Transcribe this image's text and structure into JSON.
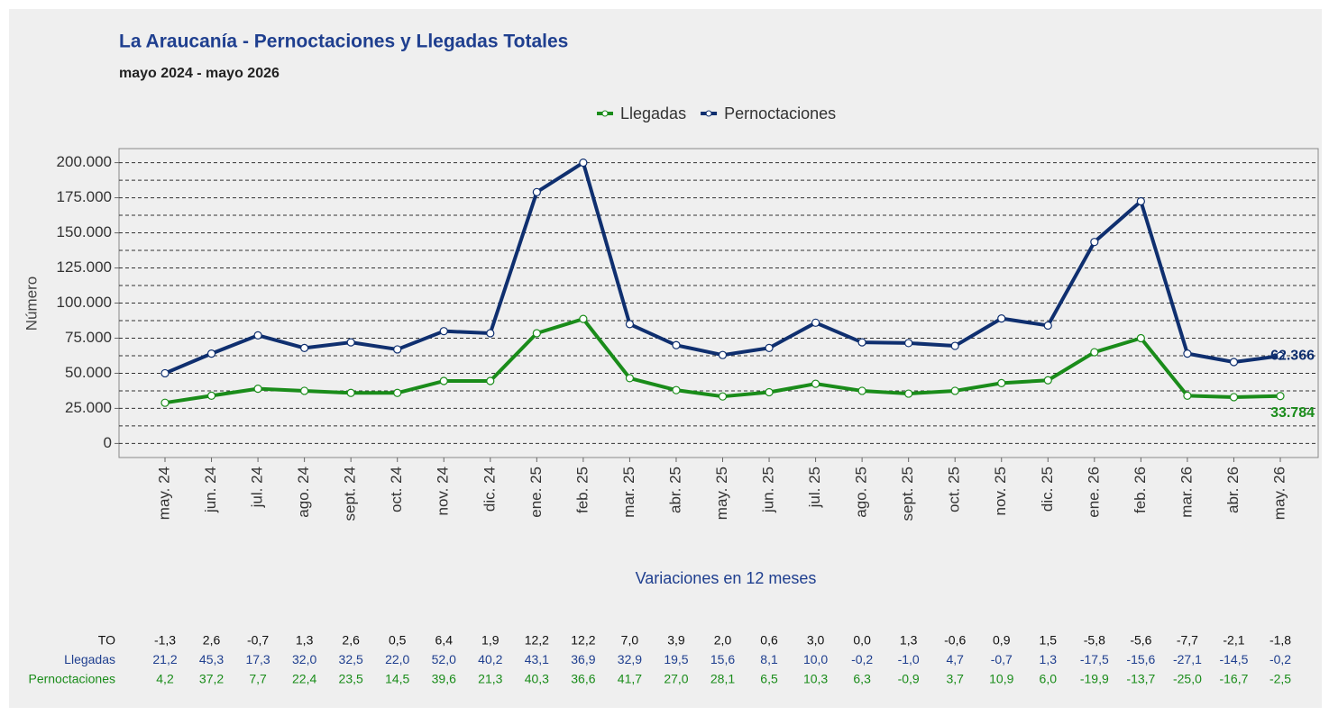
{
  "chart_data": {
    "type": "line",
    "title": "La Araucanía - Pernoctaciones y Llegadas Totales",
    "subtitle": "mayo 2024 - mayo 2026",
    "y_label": "Número",
    "categories": [
      "may. 24",
      "jun. 24",
      "jul. 24",
      "ago. 24",
      "sept. 24",
      "oct. 24",
      "nov. 24",
      "dic. 24",
      "ene. 25",
      "feb. 25",
      "mar. 25",
      "abr. 25",
      "may. 25",
      "jun. 25",
      "jul. 25",
      "ago. 25",
      "sept. 25",
      "oct. 25",
      "nov. 25",
      "dic. 25",
      "ene. 26",
      "feb. 26",
      "mar. 26",
      "abr. 26",
      "may. 26"
    ],
    "series": [
      {
        "name": "Llegadas",
        "color": "#1a8c1a",
        "values": [
          29000,
          34000,
          39000,
          37500,
          36000,
          36000,
          44500,
          44500,
          78500,
          88700,
          46500,
          38000,
          33500,
          36500,
          42500,
          37500,
          35500,
          37500,
          43000,
          45000,
          65000,
          75000,
          34000,
          33000,
          33784
        ],
        "value_labels": [
          null,
          null,
          null,
          null,
          null,
          null,
          null,
          null,
          null,
          null,
          null,
          null,
          null,
          null,
          null,
          null,
          null,
          null,
          null,
          null,
          null,
          null,
          null,
          null,
          "33.784"
        ]
      },
      {
        "name": "Pernoctaciones",
        "color": "#0f2f6f",
        "values": [
          50000,
          64000,
          77000,
          68000,
          72000,
          67000,
          80000,
          78500,
          179000,
          200000,
          85000,
          70000,
          63000,
          68000,
          86000,
          72000,
          71500,
          69500,
          89000,
          84000,
          143500,
          172500,
          64000,
          58000,
          62366
        ],
        "value_labels": [
          null,
          null,
          null,
          null,
          null,
          null,
          null,
          null,
          null,
          null,
          null,
          null,
          null,
          null,
          null,
          null,
          null,
          null,
          null,
          null,
          null,
          null,
          null,
          null,
          "62.366"
        ]
      }
    ],
    "ylim": [
      -10000,
      210000
    ],
    "yticks": [
      0,
      {
        "value": 25000,
        "label": "25.000"
      },
      {
        "value": 50000,
        "label": "50.000"
      },
      {
        "value": 75000,
        "label": "75.000"
      },
      {
        "value": 100000,
        "label": "100.000"
      },
      {
        "value": 125000,
        "label": "125.000"
      },
      {
        "value": 150000,
        "label": "150.000"
      },
      {
        "value": 175000,
        "label": "175.000"
      },
      {
        "value": 200000,
        "label": "200.000"
      }
    ],
    "grid": true
  },
  "table": {
    "title": "Variaciones en 12 meses",
    "rows": [
      {
        "label": "TO",
        "color": "#111111",
        "values": [
          "-1,3",
          "2,6",
          "-0,7",
          "1,3",
          "2,6",
          "0,5",
          "6,4",
          "1,9",
          "12,2",
          "12,2",
          "7,0",
          "3,9",
          "2,0",
          "0,6",
          "3,0",
          "0,0",
          "1,3",
          "-0,6",
          "0,9",
          "1,5",
          "-5,8",
          "-5,6",
          "-7,7",
          "-2,1",
          "-1,8"
        ]
      },
      {
        "label": "Llegadas",
        "color": "#1f3f8f",
        "values": [
          "21,2",
          "45,3",
          "17,3",
          "32,0",
          "32,5",
          "22,0",
          "52,0",
          "40,2",
          "43,1",
          "36,9",
          "32,9",
          "19,5",
          "15,6",
          "8,1",
          "10,0",
          "-0,2",
          "-1,0",
          "4,7",
          "-0,7",
          "1,3",
          "-17,5",
          "-15,6",
          "-27,1",
          "-14,5",
          "-0,2"
        ]
      },
      {
        "label": "Pernoctaciones",
        "color": "#1a8c1a",
        "values": [
          "4,2",
          "37,2",
          "7,7",
          "22,4",
          "23,5",
          "14,5",
          "39,6",
          "21,3",
          "40,3",
          "36,6",
          "41,7",
          "27,0",
          "28,1",
          "6,5",
          "10,3",
          "6,3",
          "-0,9",
          "3,7",
          "10,9",
          "6,0",
          "-19,9",
          "-13,7",
          "-25,0",
          "-16,7",
          "-2,5"
        ]
      }
    ]
  }
}
